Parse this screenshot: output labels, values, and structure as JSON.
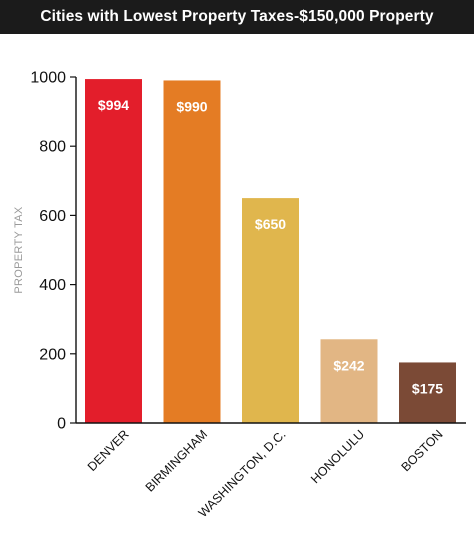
{
  "header": {
    "title": "Cities with Lowest Property Taxes-$150,000 Property",
    "background": "#1b1b1b"
  },
  "chart_data": {
    "type": "bar",
    "title": "Cities with Lowest Property Taxes-$150,000 Property",
    "xlabel": "",
    "ylabel": "PROPERTY TAX",
    "ylim": [
      0,
      1000
    ],
    "yticks": [
      0,
      200,
      400,
      600,
      800,
      1000
    ],
    "grid": false,
    "categories": [
      "DENVER",
      "BIRMINGHAM",
      "WASHINGTON, D.C.",
      "HONOLULU",
      "BOSTON"
    ],
    "values": [
      994,
      990,
      650,
      242,
      175
    ],
    "data_labels": [
      "$994",
      "$990",
      "$650",
      "$242",
      "$175"
    ],
    "colors": [
      "#e31e2b",
      "#e47c24",
      "#e0b64d",
      "#e2b684",
      "#7b4a36"
    ]
  }
}
